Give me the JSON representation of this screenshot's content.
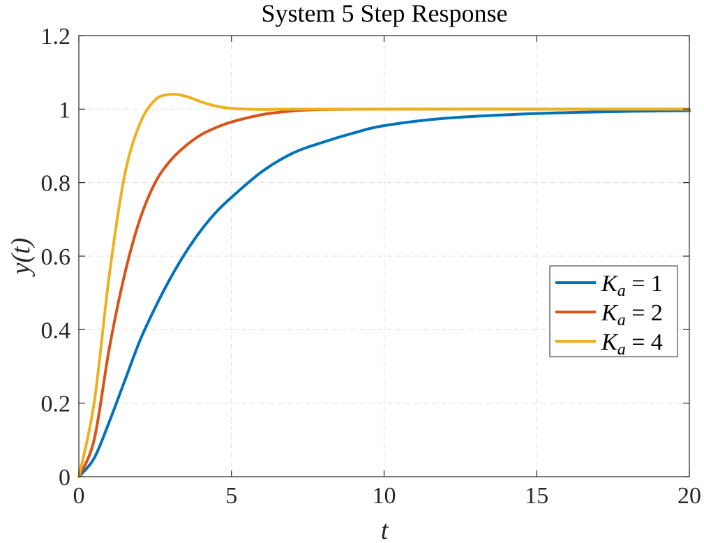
{
  "chart_data": {
    "type": "line",
    "title": "System 5 Step Response",
    "xlabel": "t",
    "ylabel": "y(t)",
    "xlim": [
      0,
      20
    ],
    "ylim": [
      0,
      1.2
    ],
    "xticks": [
      0,
      5,
      10,
      15,
      20
    ],
    "yticks": [
      0,
      0.2,
      0.4,
      0.6,
      0.8,
      1,
      1.2
    ],
    "xtick_labels": [
      "0",
      "5",
      "10",
      "15",
      "20"
    ],
    "ytick_labels": [
      "0",
      "0.2",
      "0.4",
      "0.6",
      "0.8",
      "1",
      "1.2"
    ],
    "grid": true,
    "box": true,
    "legend_position": "right",
    "series": [
      {
        "name": "K_a = 1",
        "color": "#0072BD",
        "points": [
          [
            0,
            0
          ],
          [
            0.5,
            0.05
          ],
          [
            1,
            0.15
          ],
          [
            1.5,
            0.26
          ],
          [
            2,
            0.37
          ],
          [
            2.5,
            0.46
          ],
          [
            3,
            0.54
          ],
          [
            3.5,
            0.61
          ],
          [
            4,
            0.67
          ],
          [
            4.5,
            0.72
          ],
          [
            5,
            0.76
          ],
          [
            6,
            0.83
          ],
          [
            7,
            0.88
          ],
          [
            8,
            0.91
          ],
          [
            9,
            0.935
          ],
          [
            10,
            0.955
          ],
          [
            12,
            0.975
          ],
          [
            15,
            0.988
          ],
          [
            18,
            0.994
          ],
          [
            20,
            0.996
          ]
        ]
      },
      {
        "name": "K_a = 2",
        "color": "#D95319",
        "points": [
          [
            0,
            0
          ],
          [
            0.5,
            0.1
          ],
          [
            1,
            0.35
          ],
          [
            1.5,
            0.55
          ],
          [
            2,
            0.7
          ],
          [
            2.5,
            0.8
          ],
          [
            3,
            0.86
          ],
          [
            3.5,
            0.9
          ],
          [
            4,
            0.93
          ],
          [
            4.5,
            0.95
          ],
          [
            5,
            0.965
          ],
          [
            6,
            0.985
          ],
          [
            7,
            0.995
          ],
          [
            8,
            0.999
          ],
          [
            10,
            1.0
          ],
          [
            15,
            1.0
          ],
          [
            20,
            1.0
          ]
        ]
      },
      {
        "name": "K_a = 4",
        "color": "#EDB120",
        "points": [
          [
            0,
            0
          ],
          [
            0.5,
            0.2
          ],
          [
            1,
            0.55
          ],
          [
            1.5,
            0.82
          ],
          [
            2,
            0.96
          ],
          [
            2.5,
            1.025
          ],
          [
            3,
            1.04
          ],
          [
            3.5,
            1.035
          ],
          [
            4,
            1.02
          ],
          [
            4.5,
            1.008
          ],
          [
            5,
            1.002
          ],
          [
            6,
            0.999
          ],
          [
            7,
            1.0
          ],
          [
            10,
            1.0
          ],
          [
            15,
            1.0
          ],
          [
            20,
            1.0
          ]
        ]
      }
    ],
    "legend_labels": [
      {
        "base": "K",
        "sub": "a",
        "rest": " = 1"
      },
      {
        "base": "K",
        "sub": "a",
        "rest": " = 2"
      },
      {
        "base": "K",
        "sub": "a",
        "rest": " = 4"
      }
    ]
  }
}
